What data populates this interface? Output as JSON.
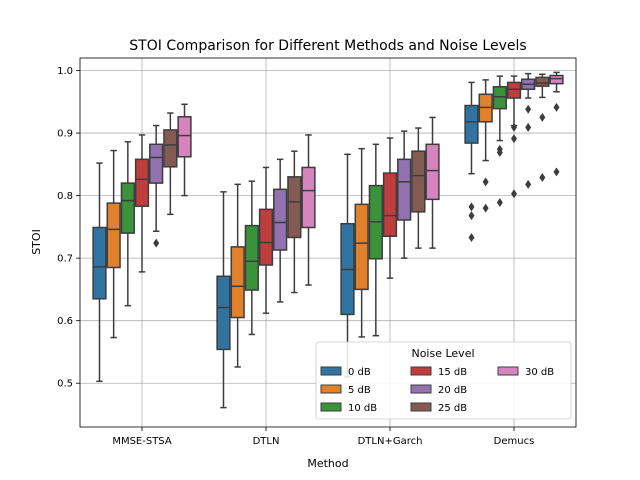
{
  "chart_data": {
    "type": "box",
    "title": "STOI Comparison for Different Methods and Noise Levels",
    "xlabel": "Method",
    "ylabel": "STOI",
    "ylim": [
      0.43,
      1.02
    ],
    "yticks": [
      0.5,
      0.6,
      0.7,
      0.8,
      0.9,
      1.0
    ],
    "ytick_labels": [
      "0.5",
      "0.6",
      "0.7",
      "0.8",
      "0.9",
      "1.0"
    ],
    "grid": true,
    "categories": [
      "MMSE-STSA",
      "DTLN",
      "DTLN+Garch",
      "Demucs"
    ],
    "legend": {
      "title": "Noise Level",
      "placement": "lower-right",
      "columns": 3
    },
    "series": [
      {
        "name": "0 dB",
        "color": "#3274a1",
        "boxes": [
          {
            "whisker_low": 0.503,
            "q1": 0.635,
            "median": 0.686,
            "q3": 0.749,
            "whisker_high": 0.852,
            "outliers": []
          },
          {
            "whisker_low": 0.461,
            "q1": 0.554,
            "median": 0.621,
            "q3": 0.671,
            "whisker_high": 0.806,
            "outliers": []
          },
          {
            "whisker_low": 0.51,
            "q1": 0.61,
            "median": 0.682,
            "q3": 0.755,
            "whisker_high": 0.866,
            "outliers": []
          },
          {
            "whisker_low": 0.835,
            "q1": 0.884,
            "median": 0.918,
            "q3": 0.944,
            "whisker_high": 0.981,
            "outliers": [
              0.782,
              0.768,
              0.733
            ]
          }
        ]
      },
      {
        "name": "5 dB",
        "color": "#e1812c",
        "boxes": [
          {
            "whisker_low": 0.573,
            "q1": 0.685,
            "median": 0.746,
            "q3": 0.788,
            "whisker_high": 0.872,
            "outliers": []
          },
          {
            "whisker_low": 0.526,
            "q1": 0.605,
            "median": 0.655,
            "q3": 0.718,
            "whisker_high": 0.818,
            "outliers": []
          },
          {
            "whisker_low": 0.574,
            "q1": 0.65,
            "median": 0.724,
            "q3": 0.786,
            "whisker_high": 0.875,
            "outliers": []
          },
          {
            "whisker_low": 0.856,
            "q1": 0.918,
            "median": 0.941,
            "q3": 0.962,
            "whisker_high": 0.985,
            "outliers": [
              0.822,
              0.78
            ]
          }
        ]
      },
      {
        "name": "10 dB",
        "color": "#3a923a",
        "boxes": [
          {
            "whisker_low": 0.624,
            "q1": 0.74,
            "median": 0.792,
            "q3": 0.82,
            "whisker_high": 0.886,
            "outliers": []
          },
          {
            "whisker_low": 0.578,
            "q1": 0.649,
            "median": 0.695,
            "q3": 0.752,
            "whisker_high": 0.823,
            "outliers": []
          },
          {
            "whisker_low": 0.576,
            "q1": 0.699,
            "median": 0.758,
            "q3": 0.816,
            "whisker_high": 0.882,
            "outliers": []
          },
          {
            "whisker_low": 0.888,
            "q1": 0.939,
            "median": 0.958,
            "q3": 0.974,
            "whisker_high": 0.991,
            "outliers": [
              0.874,
              0.869,
              0.789
            ]
          }
        ]
      },
      {
        "name": "15 dB",
        "color": "#c03d3e",
        "boxes": [
          {
            "whisker_low": 0.678,
            "q1": 0.783,
            "median": 0.826,
            "q3": 0.858,
            "whisker_high": 0.897,
            "outliers": []
          },
          {
            "whisker_low": 0.612,
            "q1": 0.689,
            "median": 0.725,
            "q3": 0.778,
            "whisker_high": 0.845,
            "outliers": []
          },
          {
            "whisker_low": 0.668,
            "q1": 0.735,
            "median": 0.768,
            "q3": 0.836,
            "whisker_high": 0.892,
            "outliers": []
          },
          {
            "whisker_low": 0.912,
            "q1": 0.956,
            "median": 0.97,
            "q3": 0.981,
            "whisker_high": 0.991,
            "outliers": [
              0.909,
              0.891,
              0.803
            ]
          }
        ]
      },
      {
        "name": "20 dB",
        "color": "#9372b2",
        "boxes": [
          {
            "whisker_low": 0.743,
            "q1": 0.82,
            "median": 0.861,
            "q3": 0.882,
            "whisker_high": 0.912,
            "outliers": [
              0.724
            ]
          },
          {
            "whisker_low": 0.63,
            "q1": 0.713,
            "median": 0.757,
            "q3": 0.81,
            "whisker_high": 0.858,
            "outliers": []
          },
          {
            "whisker_low": 0.7,
            "q1": 0.761,
            "median": 0.822,
            "q3": 0.858,
            "whisker_high": 0.903,
            "outliers": []
          },
          {
            "whisker_low": 0.956,
            "q1": 0.97,
            "median": 0.978,
            "q3": 0.986,
            "whisker_high": 0.995,
            "outliers": [
              0.938,
              0.909,
              0.818
            ]
          }
        ]
      },
      {
        "name": "25 dB",
        "color": "#845b53",
        "boxes": [
          {
            "whisker_low": 0.77,
            "q1": 0.846,
            "median": 0.881,
            "q3": 0.905,
            "whisker_high": 0.932,
            "outliers": []
          },
          {
            "whisker_low": 0.645,
            "q1": 0.733,
            "median": 0.79,
            "q3": 0.83,
            "whisker_high": 0.871,
            "outliers": []
          },
          {
            "whisker_low": 0.716,
            "q1": 0.774,
            "median": 0.832,
            "q3": 0.871,
            "whisker_high": 0.908,
            "outliers": []
          },
          {
            "whisker_low": 0.957,
            "q1": 0.975,
            "median": 0.98,
            "q3": 0.989,
            "whisker_high": 0.994,
            "outliers": [
              0.925,
              0.829
            ]
          }
        ]
      },
      {
        "name": "30 dB",
        "color": "#d684bd",
        "boxes": [
          {
            "whisker_low": 0.8,
            "q1": 0.862,
            "median": 0.896,
            "q3": 0.926,
            "whisker_high": 0.946,
            "outliers": []
          },
          {
            "whisker_low": 0.657,
            "q1": 0.749,
            "median": 0.808,
            "q3": 0.845,
            "whisker_high": 0.897,
            "outliers": []
          },
          {
            "whisker_low": 0.716,
            "q1": 0.794,
            "median": 0.84,
            "q3": 0.882,
            "whisker_high": 0.925,
            "outliers": []
          },
          {
            "whisker_low": 0.966,
            "q1": 0.979,
            "median": 0.987,
            "q3": 0.992,
            "whisker_high": 0.997,
            "outliers": [
              0.941,
              0.838
            ]
          }
        ]
      }
    ]
  }
}
